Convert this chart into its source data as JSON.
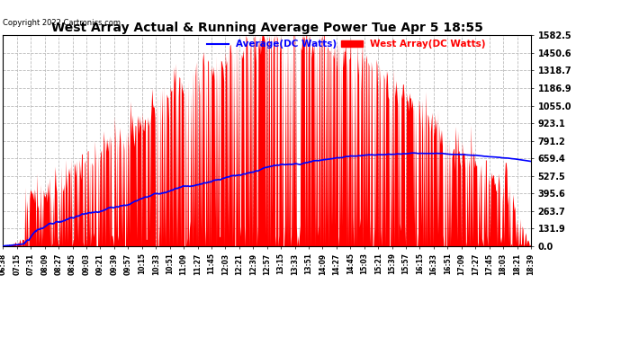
{
  "title": "West Array Actual & Running Average Power Tue Apr 5 18:55",
  "copyright": "Copyright 2022 Cartronics.com",
  "legend_avg": "Average(DC Watts)",
  "legend_west": "West Array(DC Watts)",
  "y_ticks": [
    0.0,
    131.9,
    263.7,
    395.6,
    527.5,
    659.4,
    791.2,
    923.1,
    1055.0,
    1186.9,
    1318.7,
    1450.6,
    1582.5
  ],
  "y_max": 1582.5,
  "fill_color": "#FF0000",
  "avg_color": "#0000FF",
  "west_color": "#FF0000",
  "bg_color": "#FFFFFF",
  "grid_color": "#BBBBBB",
  "title_color": "#000000",
  "copyright_color": "#000000",
  "legend_avg_color": "#0000FF",
  "legend_west_color": "#FF0000",
  "x_labels": [
    "06:38",
    "07:15",
    "07:31",
    "08:09",
    "08:27",
    "08:45",
    "09:03",
    "09:21",
    "09:39",
    "09:57",
    "10:15",
    "10:33",
    "10:51",
    "11:09",
    "11:27",
    "11:45",
    "12:03",
    "12:21",
    "12:39",
    "12:57",
    "13:15",
    "13:33",
    "13:51",
    "14:09",
    "14:27",
    "14:45",
    "15:03",
    "15:21",
    "15:39",
    "15:57",
    "16:15",
    "16:33",
    "16:51",
    "17:09",
    "17:27",
    "17:45",
    "18:03",
    "18:21",
    "18:39"
  ]
}
